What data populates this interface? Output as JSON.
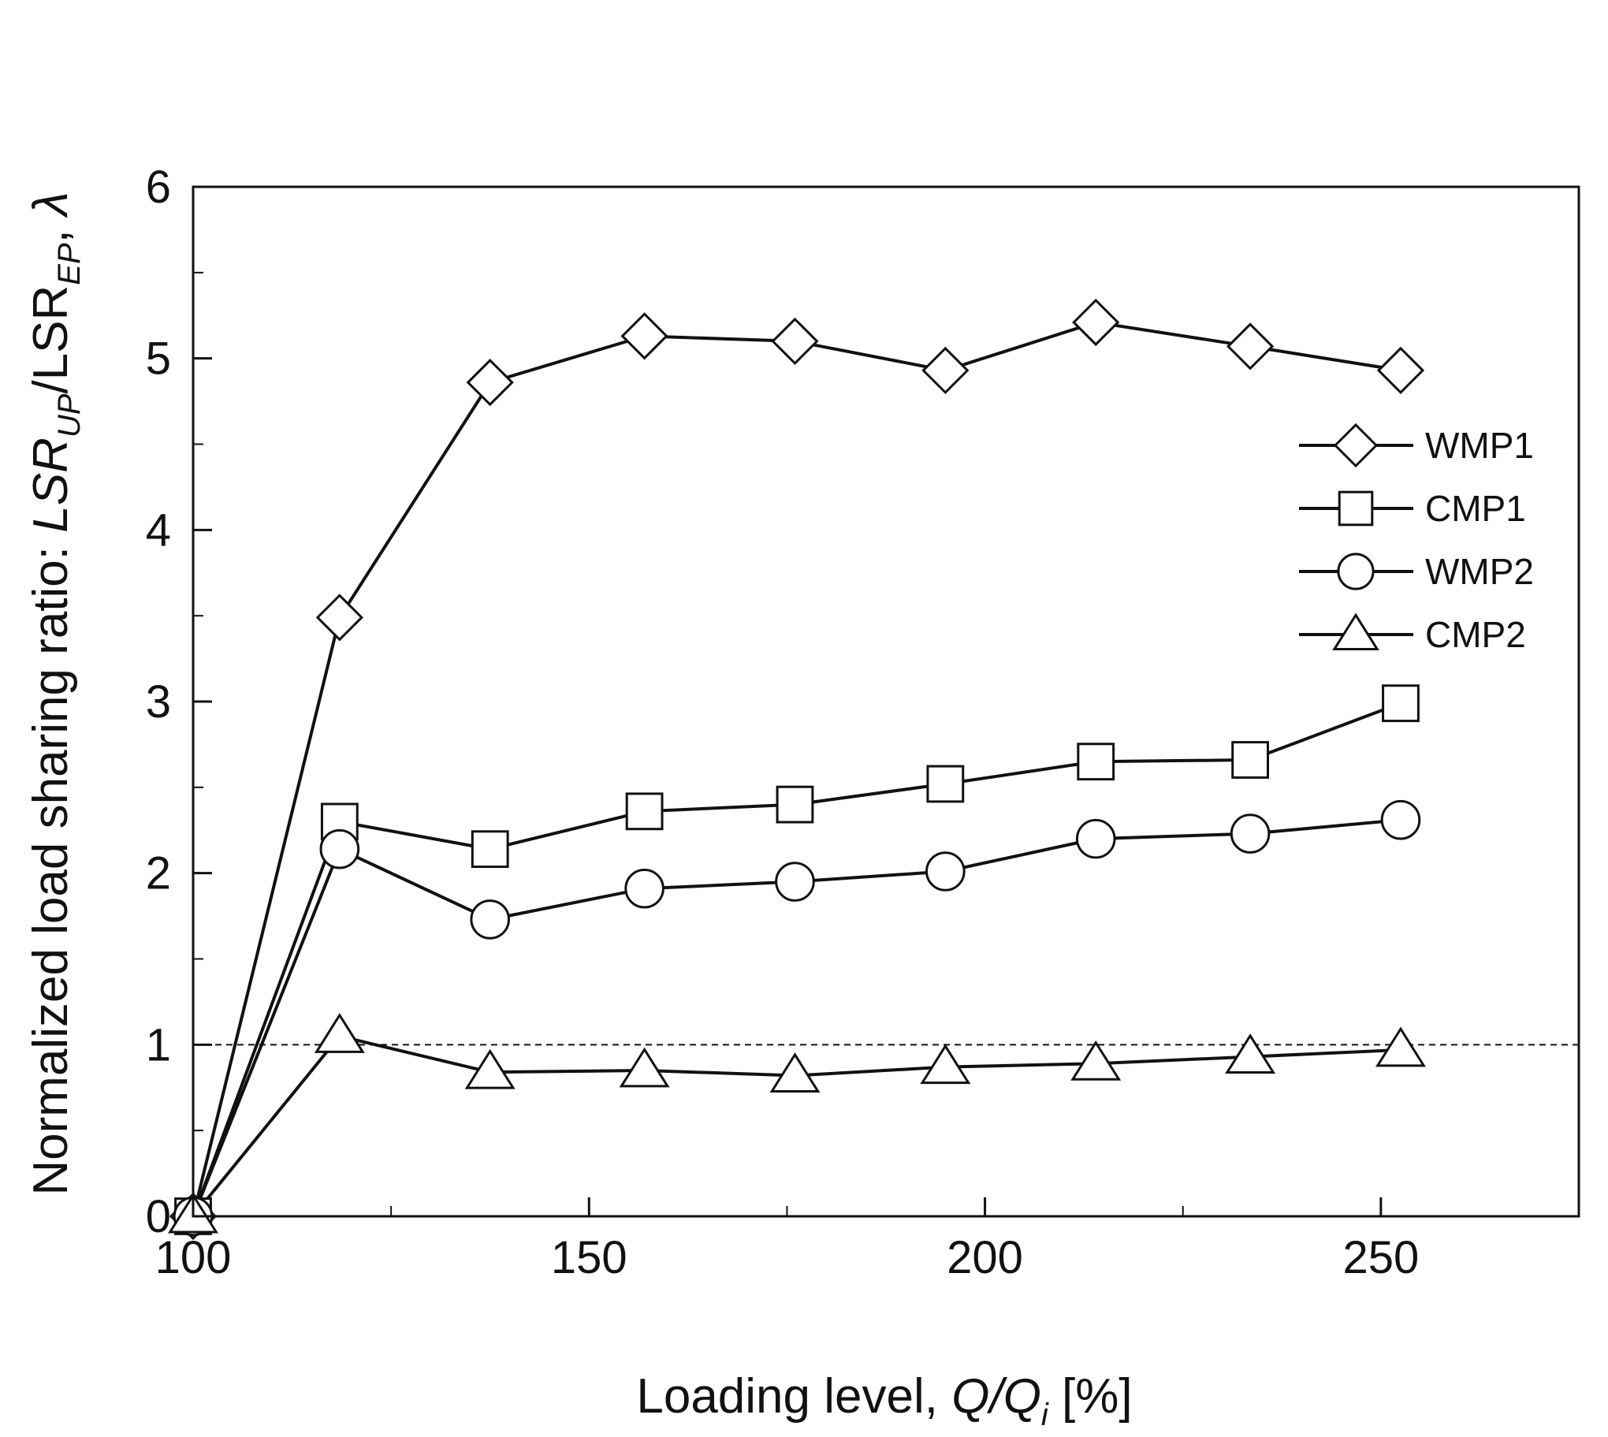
{
  "chart_data": {
    "type": "line",
    "title": "",
    "xlabel": {
      "prefix": "Loading level, ",
      "var1": "Q",
      "slash": "/",
      "var2": "Q",
      "sub": "i",
      "suffix": " [%]"
    },
    "ylabel": {
      "prefix": "Normalized load sharing ratio: ",
      "var1": "LSR",
      "sub1": "UP",
      "slash": "/LSR",
      "sub2": "EP",
      "suffix": ", ",
      "lambda": "λ"
    },
    "xlim": [
      100,
      275
    ],
    "ylim": [
      0,
      6
    ],
    "xticks": [
      100,
      150,
      200,
      250
    ],
    "xticks_minor": [
      125,
      175,
      225,
      275
    ],
    "yticks": [
      0,
      1,
      2,
      3,
      4,
      5,
      6
    ],
    "yticks_minor": [
      0.5,
      1.5,
      2.5,
      3.5,
      4.5,
      5.5
    ],
    "reference_line": {
      "y": 1,
      "style": "dashed"
    },
    "legend_position": "right",
    "series": [
      {
        "name": "WMP1",
        "marker": "diamond",
        "x": [
          100,
          118.5,
          137.5,
          157,
          176,
          195,
          214,
          233.5,
          252.5
        ],
        "y": [
          0,
          3.49,
          4.86,
          5.13,
          5.1,
          4.93,
          5.21,
          5.07,
          4.93
        ]
      },
      {
        "name": "CMP1",
        "marker": "square",
        "x": [
          100,
          118.5,
          137.5,
          157,
          176,
          195,
          214,
          233.5,
          252.5
        ],
        "y": [
          0,
          2.3,
          2.14,
          2.36,
          2.4,
          2.52,
          2.65,
          2.66,
          2.99
        ]
      },
      {
        "name": "WMP2",
        "marker": "circle",
        "x": [
          100,
          118.5,
          137.5,
          157,
          176,
          195,
          214,
          233.5,
          252.5
        ],
        "y": [
          0,
          2.14,
          1.73,
          1.91,
          1.95,
          2.01,
          2.2,
          2.23,
          2.31
        ]
      },
      {
        "name": "CMP2",
        "marker": "triangle",
        "x": [
          100,
          118.5,
          137.5,
          157,
          176,
          195,
          214,
          233.5,
          252.5
        ],
        "y": [
          0,
          1.05,
          0.84,
          0.85,
          0.82,
          0.87,
          0.89,
          0.93,
          0.97
        ]
      }
    ]
  }
}
